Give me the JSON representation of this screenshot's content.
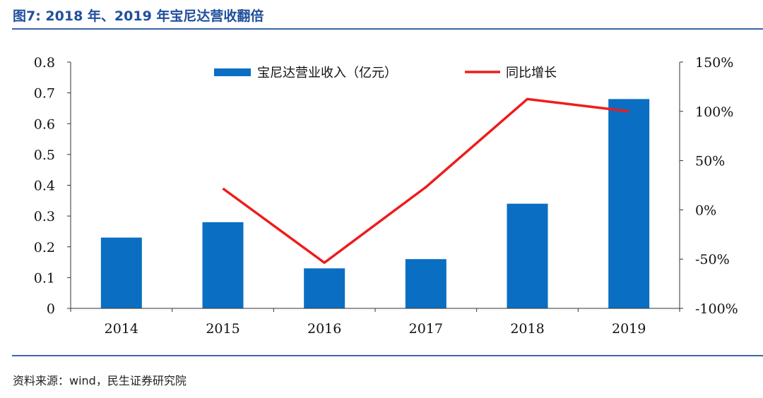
{
  "figure": {
    "title": "图7: 2018 年、2019 年宝尼达营收翻倍",
    "source": "资料来源：wind，民生证券研究院"
  },
  "chart_data": {
    "type": "bar",
    "categories": [
      "2014",
      "2015",
      "2016",
      "2017",
      "2018",
      "2019"
    ],
    "series": [
      {
        "name": "宝尼达营业收入（亿元）",
        "type": "bar",
        "axis": "left",
        "color": "#0a6fc2",
        "values": [
          0.23,
          0.28,
          0.13,
          0.16,
          0.34,
          0.68
        ]
      },
      {
        "name": "同比增长",
        "type": "line",
        "axis": "right",
        "color": "#ee1c1c",
        "values": [
          null,
          21.7,
          -53.6,
          23.1,
          112.5,
          100.0
        ]
      }
    ],
    "y_left": {
      "min": 0,
      "max": 0.8,
      "ticks": [
        0,
        0.1,
        0.2,
        0.3,
        0.4,
        0.5,
        0.6,
        0.7,
        0.8
      ],
      "tick_labels": [
        "0",
        "0.1",
        "0.2",
        "0.3",
        "0.4",
        "0.5",
        "0.6",
        "0.7",
        "0.8"
      ]
    },
    "y_right": {
      "min": -100,
      "max": 150,
      "ticks": [
        -100,
        -50,
        0,
        50,
        100,
        150
      ],
      "tick_labels": [
        "-100%",
        "-50%",
        "0%",
        "50%",
        "100%",
        "150%"
      ]
    },
    "legend_position": "top-center",
    "grid": false
  }
}
